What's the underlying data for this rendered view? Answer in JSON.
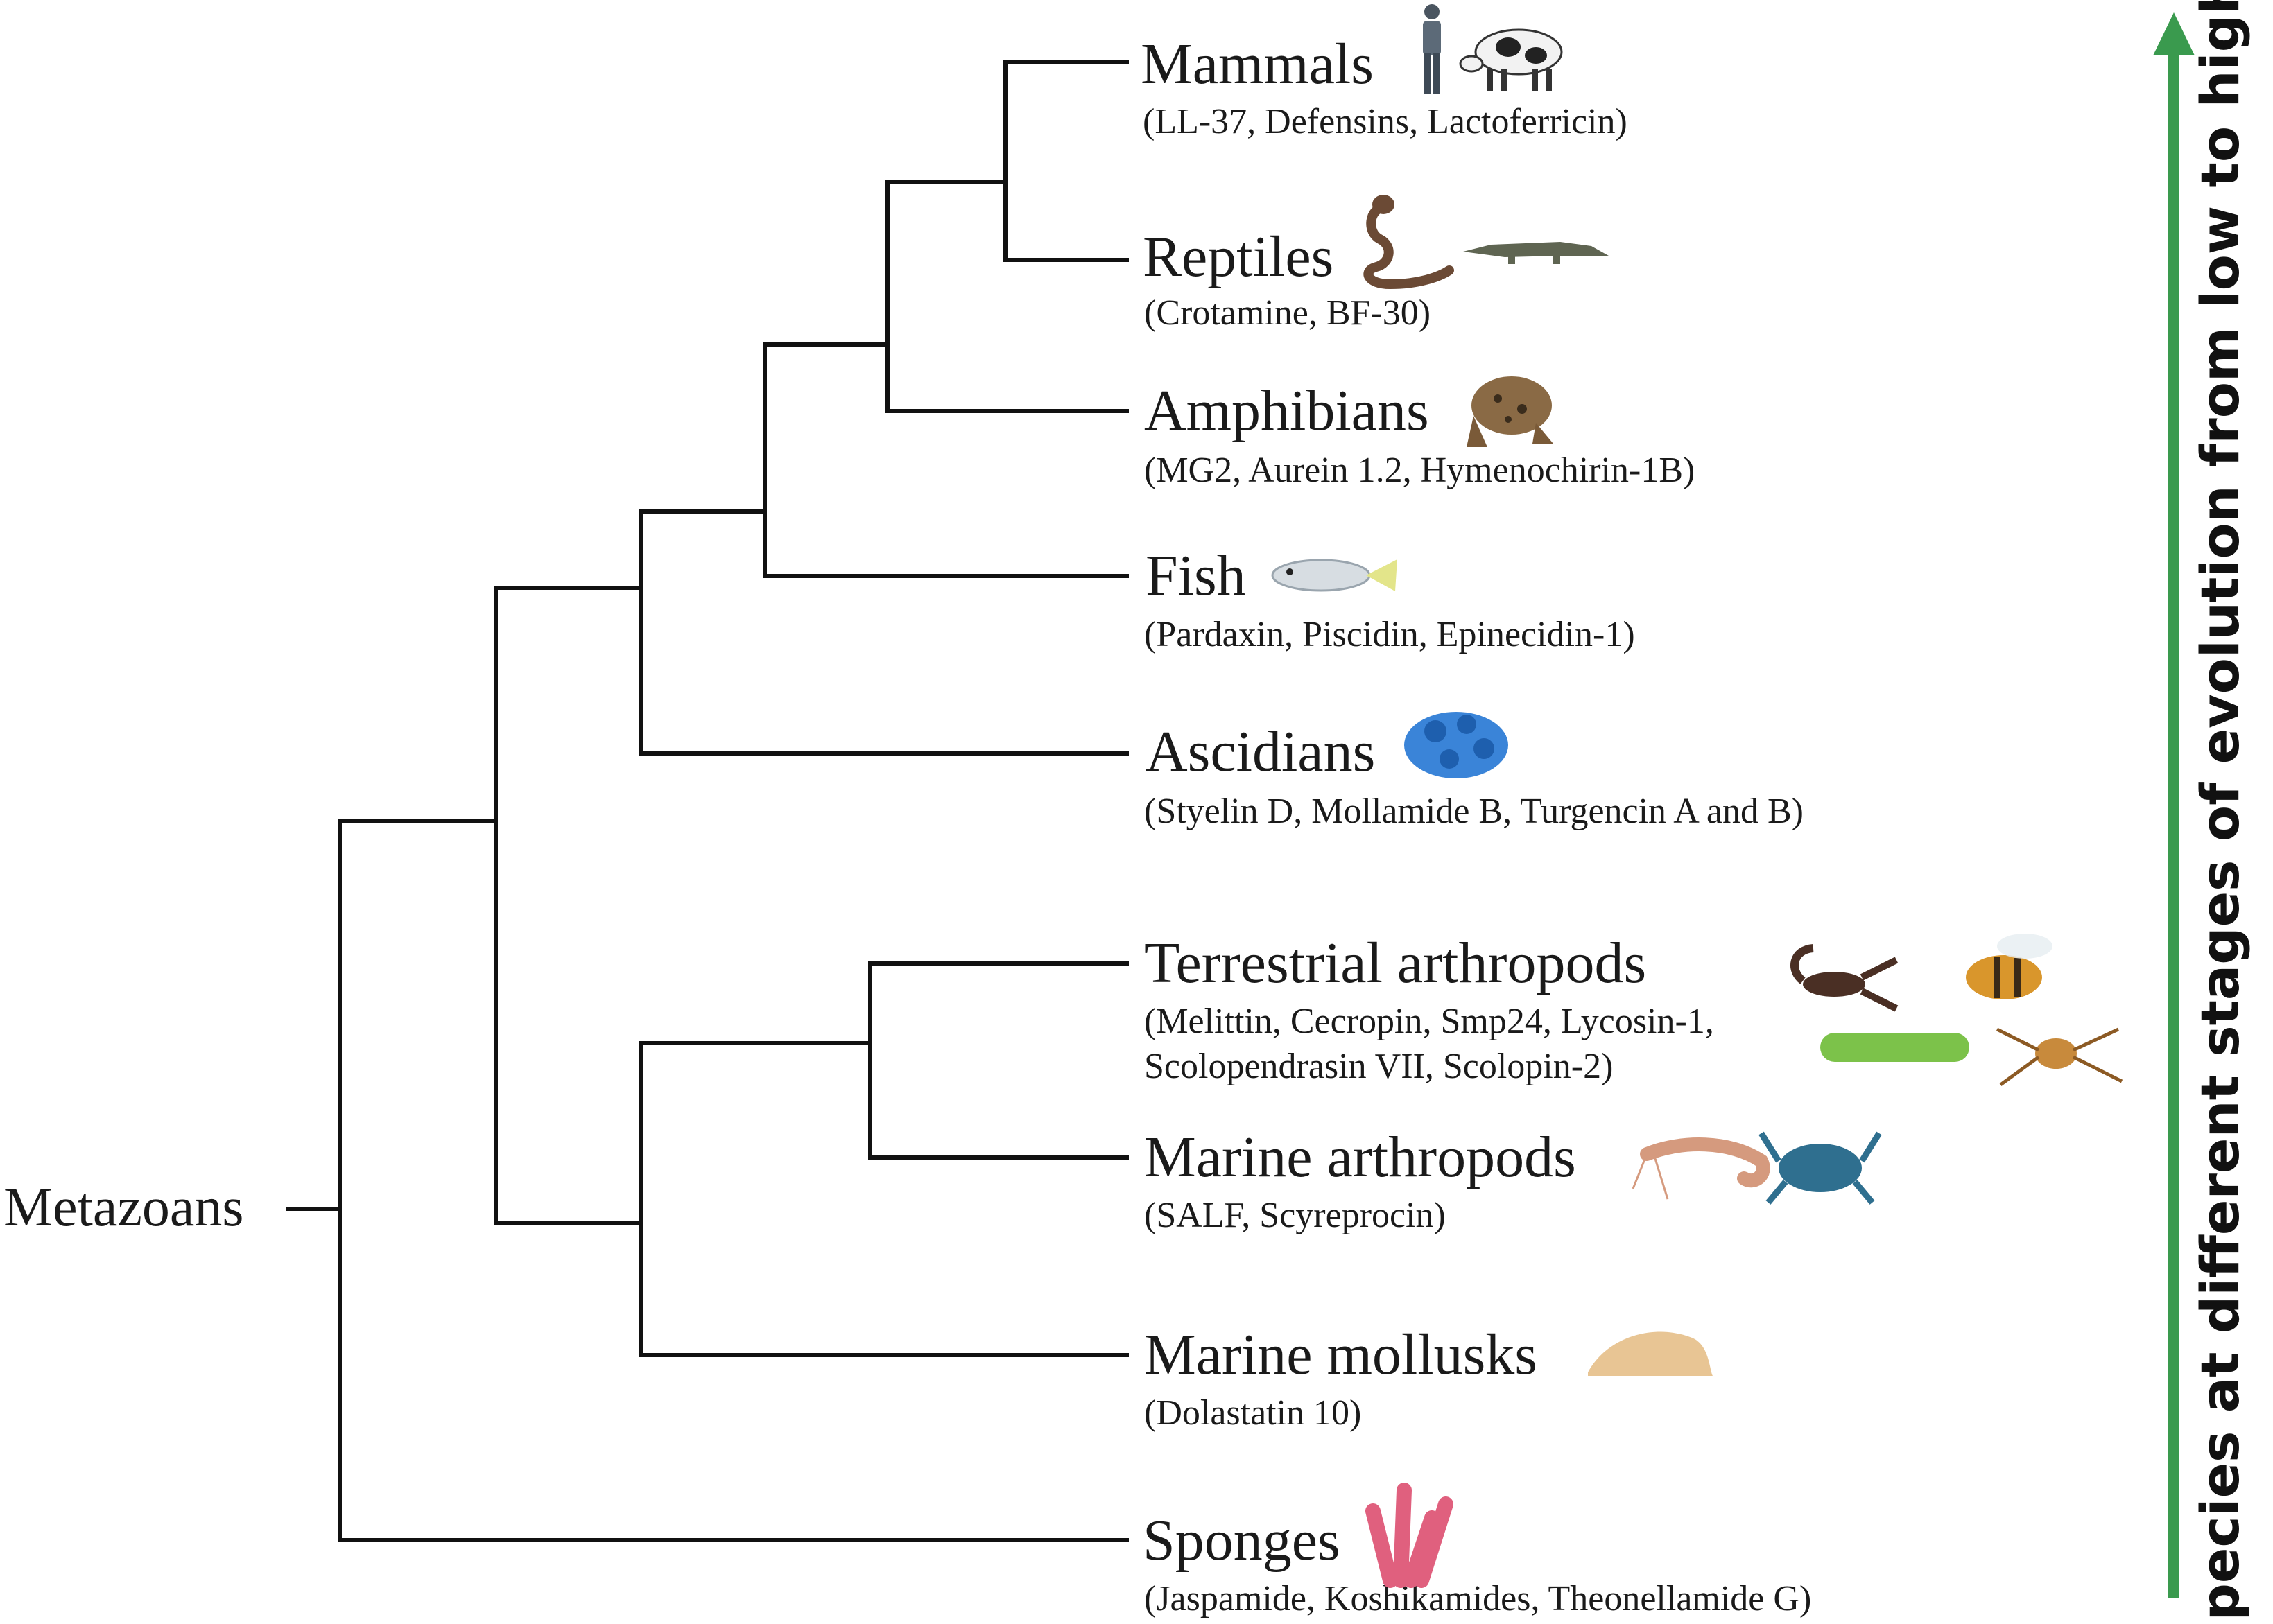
{
  "root": {
    "label": "Metazoans"
  },
  "taxa": [
    {
      "id": "mammals",
      "name": "Mammals",
      "peptides": [
        "(LL-37, Defensins, Lactoferricin)"
      ],
      "icons": [
        "human-icon",
        "cow-icon"
      ]
    },
    {
      "id": "reptiles",
      "name": "Reptiles",
      "peptides": [
        "(Crotamine, BF-30)"
      ],
      "icons": [
        "cobra-icon",
        "crocodile-icon"
      ]
    },
    {
      "id": "amphibians",
      "name": "Amphibians",
      "peptides": [
        "(MG2, Aurein 1.2, Hymenochirin-1B)"
      ],
      "icons": [
        "toad-icon"
      ]
    },
    {
      "id": "fish",
      "name": "Fish",
      "peptides": [
        "(Pardaxin, Piscidin, Epinecidin-1)"
      ],
      "icons": [
        "fish-icon"
      ]
    },
    {
      "id": "ascidians",
      "name": "Ascidians",
      "peptides": [
        "(Styelin D, Mollamide B, Turgencin A and B)"
      ],
      "icons": [
        "ascidian-icon"
      ]
    },
    {
      "id": "terrestrial-arthropods",
      "name": "Terrestrial arthropods",
      "peptides": [
        "(Melittin, Cecropin, Smp24, Lycosin-1,",
        "Scolopendrasin VII, Scolopin-2)"
      ],
      "icons": [
        "scorpion-icon",
        "bee-icon",
        "caterpillar-icon",
        "spider-icon"
      ]
    },
    {
      "id": "marine-arthropods",
      "name": "Marine arthropods",
      "peptides": [
        "(SALF, Scyreprocin)"
      ],
      "icons": [
        "shrimp-icon",
        "crab-icon"
      ]
    },
    {
      "id": "marine-mollusks",
      "name": "Marine mollusks",
      "peptides": [
        "(Dolastatin 10)"
      ],
      "icons": [
        "sea-hare-icon"
      ]
    },
    {
      "id": "sponges",
      "name": "Sponges",
      "peptides": [
        "(Jaspamide, Koshikamides, Theonellamide G)"
      ],
      "icons": [
        "sponge-icon"
      ]
    }
  ],
  "side_arrow": {
    "label": "Species at different stages of evolution from low to high",
    "color": "#3a9a4e"
  },
  "colors": {
    "branch": "#111111",
    "text": "#1a1a1a"
  }
}
